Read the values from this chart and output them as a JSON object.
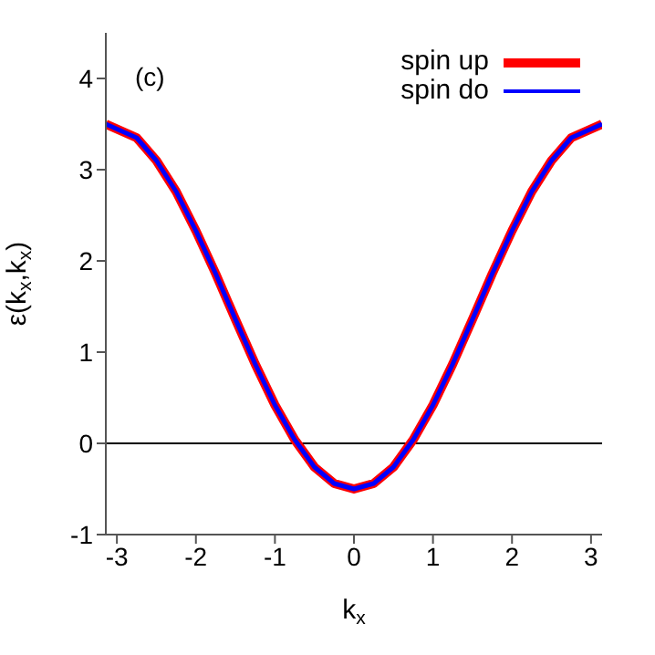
{
  "chart_data": {
    "type": "line",
    "xlabel": "k$_{x}$",
    "ylabel": "ε(k$_{x}$,k$_{x}$)",
    "annotations": [
      "(c)"
    ],
    "x": [
      -3.14,
      -2.75,
      -2.5,
      -2.25,
      -2,
      -1.75,
      -1.5,
      -1.25,
      -1,
      -0.75,
      -0.5,
      -0.25,
      0,
      0.25,
      0.5,
      0.75,
      1,
      1.25,
      1.5,
      1.75,
      2,
      2.25,
      2.5,
      2.75,
      3.14
    ],
    "series": [
      {
        "name": "spin up",
        "color": "#ff0000",
        "values": [
          3.5,
          3.35,
          3.1,
          2.76,
          2.33,
          1.86,
          1.36,
          0.87,
          0.42,
          0.04,
          -0.26,
          -0.44,
          -0.5,
          -0.44,
          -0.26,
          0.04,
          0.42,
          0.87,
          1.36,
          1.86,
          2.33,
          2.76,
          3.1,
          3.35,
          3.5
        ]
      },
      {
        "name": "spin do",
        "color": "#0000ff",
        "values": [
          3.5,
          3.35,
          3.1,
          2.76,
          2.33,
          1.86,
          1.36,
          0.87,
          0.42,
          0.04,
          -0.26,
          -0.44,
          -0.5,
          -0.44,
          -0.26,
          0.04,
          0.42,
          0.87,
          1.36,
          1.86,
          2.33,
          2.76,
          3.1,
          3.35,
          3.5
        ]
      }
    ],
    "xlim": [
      -3.14,
      3.14
    ],
    "ylim": [
      -1,
      4.5
    ],
    "xticks": [
      -3,
      -2,
      -1,
      0,
      1,
      2,
      3
    ],
    "yticks": [
      -1,
      0,
      1,
      2,
      3,
      4
    ],
    "ref_lines": [
      {
        "axis": "y",
        "value": 0,
        "color": "#000000"
      }
    ],
    "legend": "top right",
    "grid": false,
    "marker": "none",
    "line_style": "solid"
  }
}
